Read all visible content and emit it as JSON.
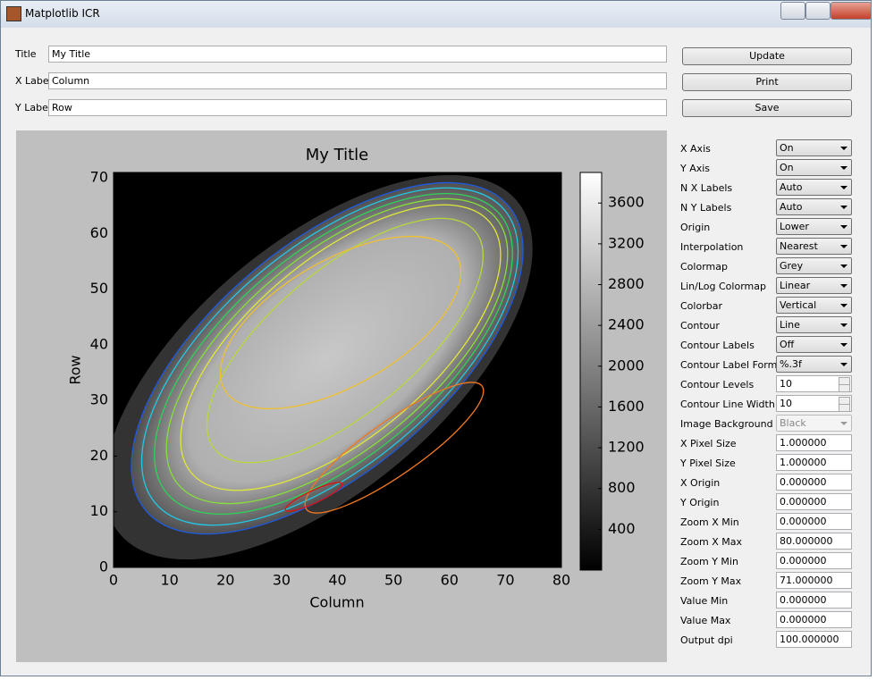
{
  "window": {
    "title": "Matplotlib ICR"
  },
  "form": {
    "fields": [
      {
        "label": "Title",
        "value": "My Title"
      },
      {
        "label": "X Label",
        "value": "Column"
      },
      {
        "label": "Y Label",
        "value": "Row"
      }
    ]
  },
  "buttons": [
    "Update",
    "Print",
    "Save"
  ],
  "settings": [
    {
      "label": "X Axis",
      "value": "On",
      "control": "dropdown"
    },
    {
      "label": "Y Axis",
      "value": "On",
      "control": "dropdown"
    },
    {
      "label": "N X Labels",
      "value": "Auto",
      "control": "dropdown"
    },
    {
      "label": "N Y Labels",
      "value": "Auto",
      "control": "dropdown"
    },
    {
      "label": "Origin",
      "value": "Lower",
      "control": "dropdown"
    },
    {
      "label": "Interpolation",
      "value": "Nearest",
      "control": "dropdown"
    },
    {
      "label": "Colormap",
      "value": "Grey",
      "control": "dropdown"
    },
    {
      "label": "Lin/Log Colormap",
      "value": "Linear",
      "control": "dropdown"
    },
    {
      "label": "Colorbar",
      "value": "Vertical",
      "control": "dropdown"
    },
    {
      "label": "Contour",
      "value": "Line",
      "control": "dropdown"
    },
    {
      "label": "Contour Labels",
      "value": "Off",
      "control": "dropdown"
    },
    {
      "label": "Contour Label Format",
      "value": "%.3f",
      "control": "dropdown"
    },
    {
      "label": "Contour Levels",
      "value": "10",
      "control": "spin"
    },
    {
      "label": "Contour Line Width",
      "value": "10",
      "control": "spin"
    },
    {
      "label": "Image Background",
      "value": "Black",
      "control": "disabled"
    },
    {
      "label": "X Pixel Size",
      "value": "1.000000",
      "control": "text"
    },
    {
      "label": "Y Pixel Size",
      "value": "1.000000",
      "control": "text"
    },
    {
      "label": "X Origin",
      "value": "0.000000",
      "control": "text"
    },
    {
      "label": "Y Origin",
      "value": "0.000000",
      "control": "text"
    },
    {
      "label": "Zoom X Min",
      "value": "0.000000",
      "control": "text"
    },
    {
      "label": "Zoom X Max",
      "value": "80.000000",
      "control": "text"
    },
    {
      "label": "Zoom Y Min",
      "value": "0.000000",
      "control": "text"
    },
    {
      "label": "Zoom Y Max",
      "value": "71.000000",
      "control": "text"
    },
    {
      "label": "Value Min",
      "value": "0.000000",
      "control": "text"
    },
    {
      "label": "Value Max",
      "value": "0.000000",
      "control": "text"
    },
    {
      "label": "Output dpi",
      "value": "100.000000",
      "control": "text"
    }
  ],
  "chart_data": {
    "type": "image",
    "title": "My Title",
    "x_label": "Column",
    "y_label": "Row",
    "xlim": [
      0,
      80
    ],
    "ylim": [
      0,
      71
    ],
    "xticks": [
      0,
      10,
      20,
      30,
      40,
      50,
      60,
      70,
      80
    ],
    "yticks": [
      0,
      10,
      20,
      30,
      40,
      50,
      60,
      70
    ],
    "colorbar": {
      "lim": [
        0,
        3900
      ],
      "ticks": [
        400,
        800,
        1200,
        1600,
        2000,
        2400,
        2800,
        3200,
        3600
      ]
    }
  }
}
